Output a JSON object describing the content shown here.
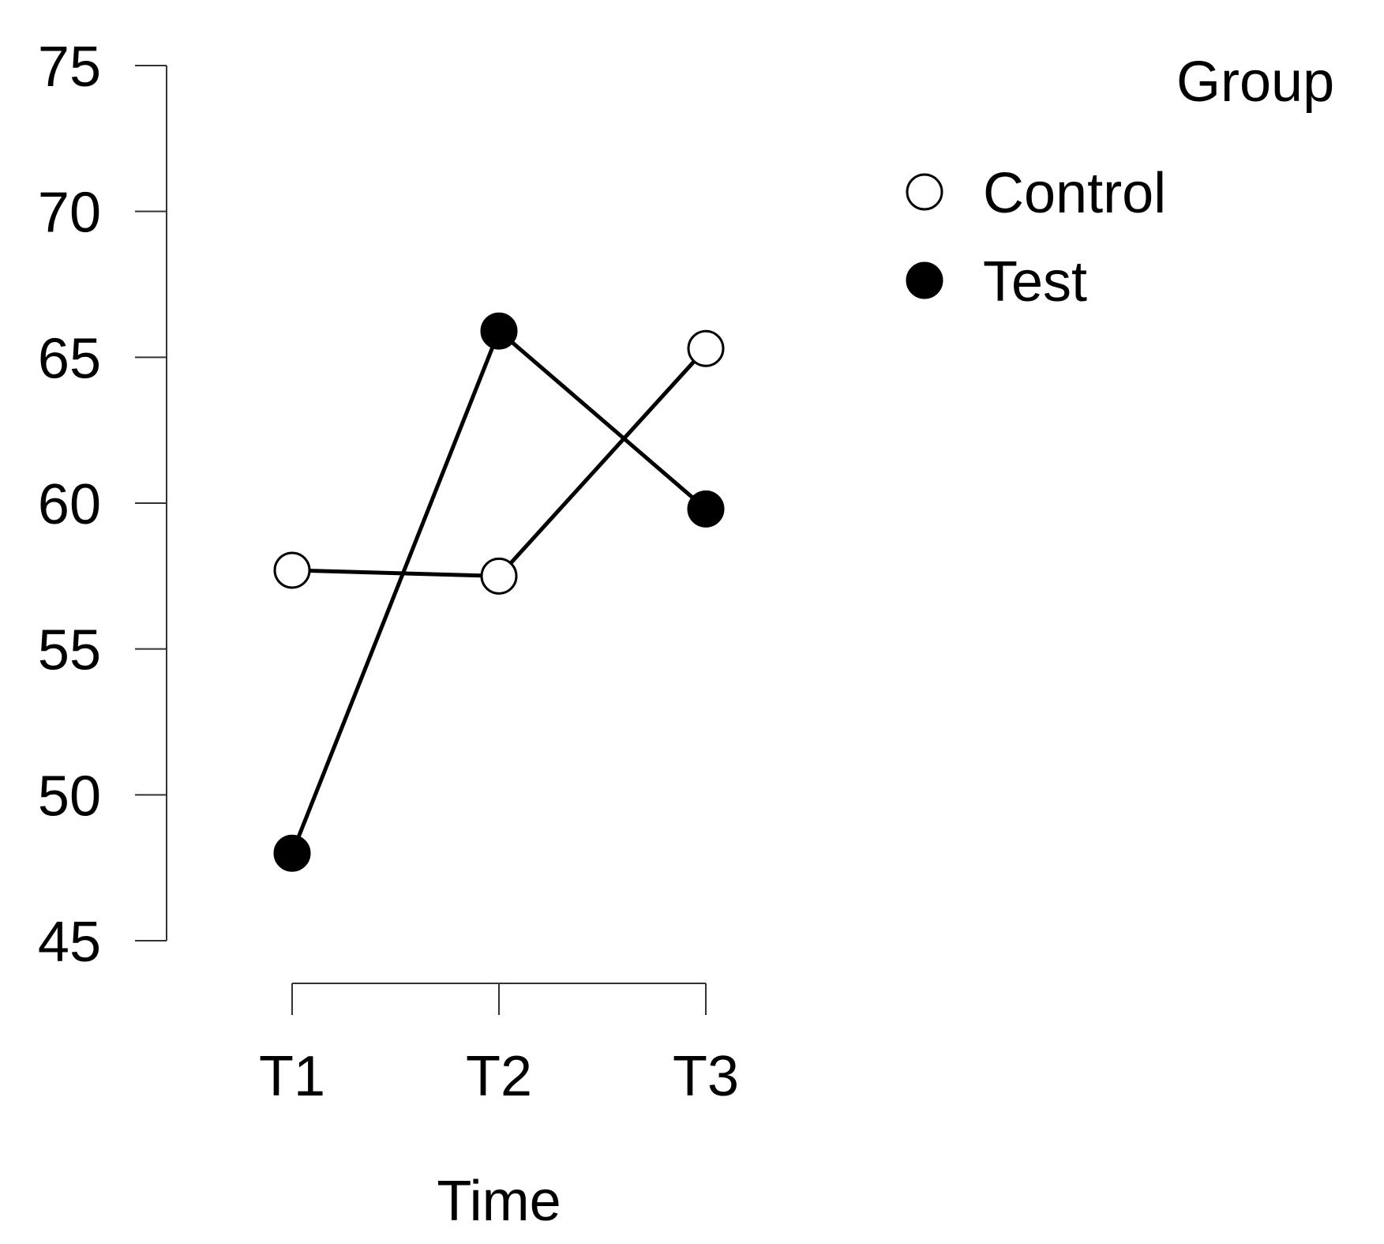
{
  "chart_data": {
    "type": "line",
    "title": "",
    "xlabel": "Time",
    "ylabel": "",
    "categories": [
      "T1",
      "T2",
      "T3"
    ],
    "ylim": [
      45,
      75
    ],
    "yticks": [
      45,
      50,
      55,
      60,
      65,
      70,
      75
    ],
    "ytick_labels": [
      "45",
      "50",
      "55",
      "60",
      "65",
      "70",
      "75"
    ],
    "legend": {
      "title": "Group",
      "position": "top-right"
    },
    "series": [
      {
        "name": "Control",
        "marker": "open-circle",
        "values": [
          57.7,
          57.5,
          65.3
        ]
      },
      {
        "name": "Test",
        "marker": "filled-circle",
        "values": [
          48.0,
          65.9,
          59.8
        ]
      }
    ],
    "colors": {
      "line": "#000000",
      "axis": "#333333",
      "open_marker_fill": "#ffffff",
      "filled_marker_fill": "#000000"
    }
  }
}
